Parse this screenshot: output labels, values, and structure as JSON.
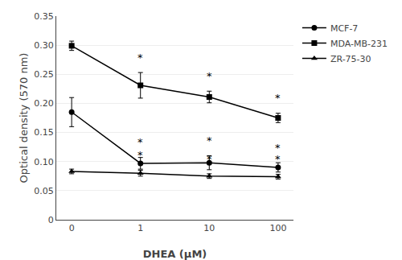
{
  "chart_data": {
    "type": "line",
    "xlabel": "DHEA (μM)",
    "ylabel": "Optical density (570 nm)",
    "categories": [
      "0",
      "1",
      "10",
      "100"
    ],
    "series": [
      {
        "name": "MCF-7",
        "color": "#000000",
        "marker": "circle",
        "line_style": "solid",
        "values": [
          0.185,
          0.097,
          0.098,
          0.09
        ],
        "errors": [
          0.025,
          0.01,
          0.012,
          0.008
        ]
      },
      {
        "name": "MDA-MB-231",
        "color": "#000000",
        "marker": "square",
        "line_style": "solid",
        "values": [
          0.299,
          0.231,
          0.211,
          0.175
        ],
        "errors": [
          0.008,
          0.022,
          0.01,
          0.008
        ]
      },
      {
        "name": "ZR-75-30",
        "color": "#000000",
        "marker": "triangle-up",
        "line_style": "solid",
        "values": [
          0.083,
          0.08,
          0.075,
          0.074
        ],
        "errors": [
          0.004,
          0.005,
          0.004,
          0.004
        ]
      }
    ],
    "annotations": [
      {
        "text": "*",
        "x": "1",
        "y": 0.12
      },
      {
        "text": "*",
        "x": "10",
        "y": 0.123
      },
      {
        "text": "*",
        "x": "100",
        "y": 0.111
      },
      {
        "text": "*",
        "x": "1",
        "y": 0.266
      },
      {
        "text": "*",
        "x": "10",
        "y": 0.234
      },
      {
        "text": "*",
        "x": "100",
        "y": 0.196
      },
      {
        "text": "*",
        "x": "1",
        "y": 0.098
      },
      {
        "text": "*",
        "x": "10",
        "y": 0.092
      },
      {
        "text": "*",
        "x": "100",
        "y": 0.091
      }
    ],
    "ylim": [
      0,
      0.35
    ],
    "yticks": [
      0,
      0.05,
      {
        "value": 0.1,
        "label": "0.10"
      },
      0.15,
      {
        "value": 0.2,
        "label": "0.20"
      },
      0.25,
      {
        "value": 0.3,
        "label": "0.30"
      },
      0.35
    ],
    "grid": true,
    "legend": "upper right"
  }
}
